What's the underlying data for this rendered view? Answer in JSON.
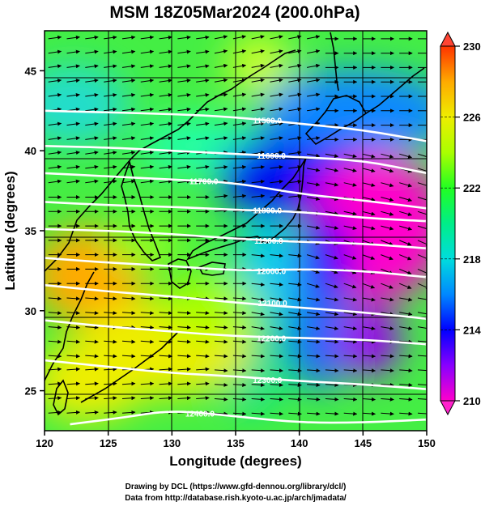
{
  "title": "MSM 18Z05Mar2024 (200.0hPa)",
  "xlabel": "Longitude (degrees)",
  "ylabel": "Latitude  (degrees)",
  "credits": [
    "Drawing by DCL (https://www.gfd-dennou.org/library/dcl/)",
    "Data from http://database.rish.kyoto-u.ac.jp/arch/jmadata/"
  ],
  "chart_data": {
    "type": "heatmap",
    "title": "MSM 18Z05Mar2024 (200.0hPa)",
    "xlabel": "Longitude (degrees)",
    "ylabel": "Latitude  (degrees)",
    "xlim": [
      120,
      150
    ],
    "ylim": [
      22.5,
      47.5
    ],
    "xticks": [
      120,
      125,
      130,
      135,
      140,
      145,
      150
    ],
    "yticks": [
      25,
      30,
      35,
      40,
      45
    ],
    "grid": true,
    "colorbar": {
      "vmin": 210,
      "vmax": 230,
      "ticks": [
        210,
        214,
        218,
        222,
        226,
        230
      ],
      "position": "right",
      "stops": [
        {
          "v": 210,
          "color": "#ff00cc"
        },
        {
          "v": 212,
          "color": "#8800ff"
        },
        {
          "v": 214,
          "color": "#0000ff"
        },
        {
          "v": 216,
          "color": "#0088ff"
        },
        {
          "v": 218,
          "color": "#00dddd"
        },
        {
          "v": 220,
          "color": "#00ee88"
        },
        {
          "v": 222,
          "color": "#22ff22"
        },
        {
          "v": 224,
          "color": "#aaff00"
        },
        {
          "v": 226,
          "color": "#eeee00"
        },
        {
          "v": 228,
          "color": "#ffaa00"
        },
        {
          "v": 230,
          "color": "#ff3300"
        }
      ]
    },
    "contours": [
      {
        "label": "11500.0",
        "points": [
          [
            120,
            42.5
          ],
          [
            125,
            42.4
          ],
          [
            130,
            42.3
          ],
          [
            135,
            42.1
          ],
          [
            140,
            41.7
          ],
          [
            145,
            41.3
          ],
          [
            150,
            40.6
          ]
        ],
        "label_at": [
          137.5,
          41.9
        ]
      },
      {
        "label": "11600.0",
        "points": [
          [
            120,
            40.3
          ],
          [
            125,
            40.2
          ],
          [
            130,
            40.0
          ],
          [
            135,
            39.8
          ],
          [
            140,
            39.6
          ],
          [
            145,
            39.4
          ],
          [
            150,
            38.6
          ]
        ],
        "label_at": [
          137.8,
          39.7
        ]
      },
      {
        "label": "11700.0",
        "points": [
          [
            120,
            38.6
          ],
          [
            125,
            38.4
          ],
          [
            130,
            38.2
          ],
          [
            135,
            38.0
          ],
          [
            140,
            37.3
          ],
          [
            145,
            36.9
          ],
          [
            150,
            36.4
          ]
        ],
        "label_at": [
          132.5,
          38.1
        ]
      },
      {
        "label": "11800.0",
        "points": [
          [
            120,
            36.8
          ],
          [
            125,
            36.6
          ],
          [
            130,
            36.5
          ],
          [
            135,
            36.3
          ],
          [
            140,
            36.2
          ],
          [
            145,
            35.8
          ],
          [
            150,
            35.6
          ]
        ],
        "label_at": [
          137.5,
          36.3
        ]
      },
      {
        "label": "11900.0",
        "points": [
          [
            120,
            35.1
          ],
          [
            125,
            35.0
          ],
          [
            130,
            34.8
          ],
          [
            135,
            34.5
          ],
          [
            140,
            34.3
          ],
          [
            145,
            34.2
          ],
          [
            150,
            33.9
          ]
        ],
        "label_at": [
          137.6,
          34.4
        ]
      },
      {
        "label": "12000.0",
        "points": [
          [
            120,
            33.3
          ],
          [
            125,
            33.0
          ],
          [
            130,
            32.8
          ],
          [
            135,
            32.5
          ],
          [
            140,
            32.6
          ],
          [
            145,
            32.5
          ],
          [
            150,
            32.1
          ]
        ],
        "label_at": [
          137.8,
          32.5
        ]
      },
      {
        "label": "12100.0",
        "points": [
          [
            120,
            31.6
          ],
          [
            125,
            31.2
          ],
          [
            130,
            30.9
          ],
          [
            135,
            30.5
          ],
          [
            140,
            30.2
          ],
          [
            145,
            29.9
          ],
          [
            150,
            29.5
          ]
        ],
        "label_at": [
          137.9,
          30.5
        ]
      },
      {
        "label": "12200.0",
        "points": [
          [
            120,
            29.4
          ],
          [
            125,
            29.0
          ],
          [
            130,
            28.7
          ],
          [
            135,
            28.4
          ],
          [
            140,
            28.3
          ],
          [
            145,
            28.2
          ],
          [
            150,
            27.9
          ]
        ],
        "label_at": [
          137.8,
          28.3
        ]
      },
      {
        "label": "12300.0",
        "points": [
          [
            120,
            26.9
          ],
          [
            125,
            26.5
          ],
          [
            130,
            26.1
          ],
          [
            135,
            25.9
          ],
          [
            140,
            25.6
          ],
          [
            145,
            25.4
          ],
          [
            150,
            25.1
          ]
        ],
        "label_at": [
          137.5,
          25.7
        ]
      },
      {
        "label": "12400.0",
        "points": [
          [
            122,
            22.9
          ],
          [
            126,
            23.3
          ],
          [
            130,
            23.8
          ],
          [
            135,
            23.4
          ],
          [
            140,
            23.0
          ],
          [
            145,
            23.0
          ],
          [
            150,
            23.2
          ]
        ],
        "label_at": [
          132.2,
          23.6
        ]
      }
    ]
  },
  "icons": {
    "cb_top": "triangle-up-icon",
    "cb_bottom": "triangle-down-icon"
  }
}
